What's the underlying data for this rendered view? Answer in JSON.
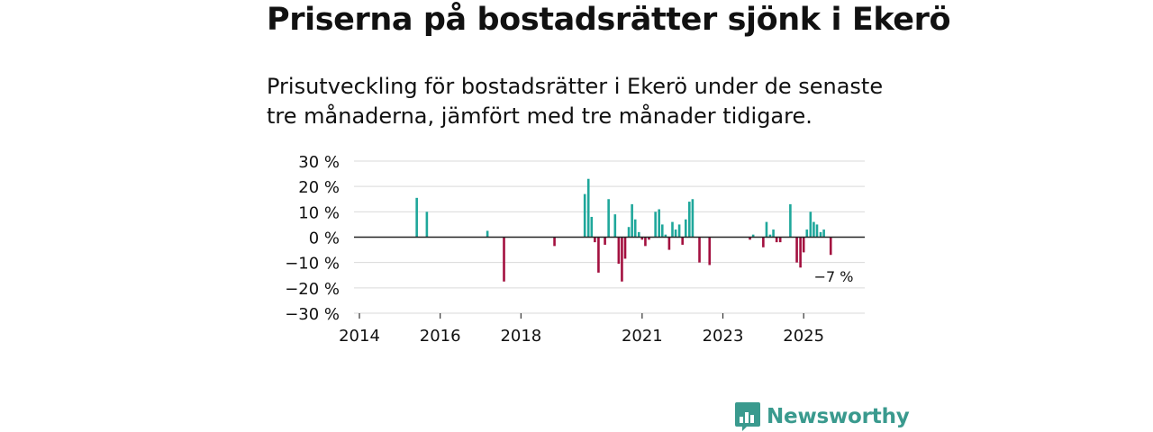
{
  "title": "Priserna på bostadsrätter sjönk i Ekerö",
  "subtitle": "Prisutveckling för bostadsrätter i Ekerö under de senaste tre månaderna, jämfört med tre månader tidigare.",
  "brand": {
    "name": "Newsworthy"
  },
  "colors": {
    "positive": "#1fa79b",
    "negative": "#a3103f",
    "grid": "#d9d9d9",
    "zero_line": "#222222",
    "brand": "#3a9a8e"
  },
  "chart_data": {
    "type": "bar",
    "title": "Priserna på bostadsrätter sjönk i Ekerö",
    "xlabel": "",
    "ylabel": "",
    "ylim": [
      -30,
      30
    ],
    "yticks": [
      30,
      20,
      10,
      0,
      -10,
      -20,
      -30
    ],
    "ytick_labels": [
      "30 %",
      "20 %",
      "10 %",
      "0 %",
      "−10 %",
      "−20 %",
      "−30 %"
    ],
    "xlim": [
      2014,
      2026.2
    ],
    "xticks": [
      2014,
      2016,
      2018,
      2021,
      2023,
      2025
    ],
    "xtick_labels": [
      "2014",
      "2016",
      "2018",
      "2021",
      "2023",
      "2025"
    ],
    "annotation": {
      "label": "−7 %",
      "x": 2025.7,
      "value": -7
    },
    "series": [
      {
        "name": "Prisutveckling",
        "points": [
          {
            "x": 2015.42,
            "value": 15.5
          },
          {
            "x": 2015.67,
            "value": 10
          },
          {
            "x": 2017.17,
            "value": 2.5
          },
          {
            "x": 2017.58,
            "value": -17.5
          },
          {
            "x": 2018.83,
            "value": -3.5
          },
          {
            "x": 2019.58,
            "value": 17
          },
          {
            "x": 2019.67,
            "value": 23
          },
          {
            "x": 2019.75,
            "value": 8
          },
          {
            "x": 2019.83,
            "value": -2
          },
          {
            "x": 2019.92,
            "value": -14
          },
          {
            "x": 2020.08,
            "value": -3
          },
          {
            "x": 2020.17,
            "value": 15
          },
          {
            "x": 2020.33,
            "value": 9
          },
          {
            "x": 2020.42,
            "value": -10.5
          },
          {
            "x": 2020.5,
            "value": -17.5
          },
          {
            "x": 2020.58,
            "value": -8.5
          },
          {
            "x": 2020.67,
            "value": 4
          },
          {
            "x": 2020.75,
            "value": 13
          },
          {
            "x": 2020.83,
            "value": 7
          },
          {
            "x": 2020.92,
            "value": 2
          },
          {
            "x": 2021.0,
            "value": -1
          },
          {
            "x": 2021.08,
            "value": -3.5
          },
          {
            "x": 2021.17,
            "value": -1
          },
          {
            "x": 2021.33,
            "value": 10
          },
          {
            "x": 2021.42,
            "value": 11
          },
          {
            "x": 2021.5,
            "value": 5
          },
          {
            "x": 2021.58,
            "value": 1
          },
          {
            "x": 2021.67,
            "value": -5
          },
          {
            "x": 2021.75,
            "value": 6
          },
          {
            "x": 2021.83,
            "value": 3
          },
          {
            "x": 2021.92,
            "value": 5
          },
          {
            "x": 2022.0,
            "value": -3
          },
          {
            "x": 2022.08,
            "value": 7
          },
          {
            "x": 2022.17,
            "value": 14
          },
          {
            "x": 2022.25,
            "value": 15
          },
          {
            "x": 2022.42,
            "value": -10
          },
          {
            "x": 2022.67,
            "value": -11
          },
          {
            "x": 2023.67,
            "value": -1
          },
          {
            "x": 2023.75,
            "value": 1
          },
          {
            "x": 2024.0,
            "value": -4
          },
          {
            "x": 2024.08,
            "value": 6
          },
          {
            "x": 2024.17,
            "value": 1
          },
          {
            "x": 2024.25,
            "value": 3
          },
          {
            "x": 2024.33,
            "value": -2
          },
          {
            "x": 2024.42,
            "value": -2
          },
          {
            "x": 2024.67,
            "value": 13
          },
          {
            "x": 2024.83,
            "value": -10
          },
          {
            "x": 2024.92,
            "value": -12
          },
          {
            "x": 2025.0,
            "value": -6
          },
          {
            "x": 2025.08,
            "value": 3
          },
          {
            "x": 2025.17,
            "value": 10
          },
          {
            "x": 2025.25,
            "value": 6
          },
          {
            "x": 2025.33,
            "value": 5
          },
          {
            "x": 2025.42,
            "value": 2
          },
          {
            "x": 2025.5,
            "value": 3
          },
          {
            "x": 2025.67,
            "value": -7
          }
        ]
      }
    ]
  }
}
